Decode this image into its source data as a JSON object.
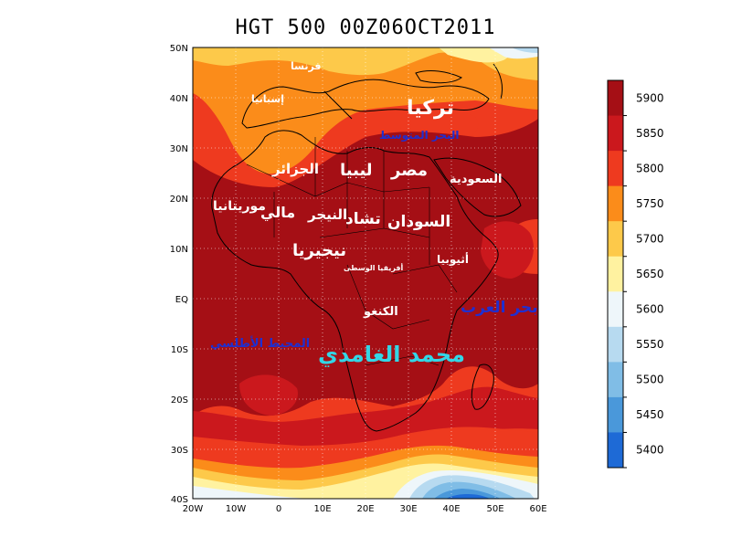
{
  "title": "HGT 500 00Z06OCT2011",
  "latitude_ticks": [
    "50N",
    "40N",
    "30N",
    "20N",
    "10N",
    "EQ",
    "10S",
    "20S",
    "30S",
    "40S"
  ],
  "longitude_ticks": [
    "20W",
    "10W",
    "0",
    "10E",
    "20E",
    "30E",
    "40E",
    "50E",
    "60E"
  ],
  "colorbar": {
    "labels": [
      "5900",
      "5850",
      "5800",
      "5750",
      "5700",
      "5650",
      "5600",
      "5550",
      "5500",
      "5450",
      "5400"
    ],
    "colors": [
      "#a50f15",
      "#cb181d",
      "#ee3a1f",
      "#fb8c1a",
      "#fdc94a",
      "#fff2a0",
      "#eef6fa",
      "#b7daf0",
      "#80bde6",
      "#4a98da",
      "#1e6ad6"
    ]
  },
  "map_labels": {
    "france": "فرنسا",
    "spain": "إسبانيا",
    "turkey": "تركيا",
    "mediterranean": "البحر المتوسط",
    "algeria": "الجزائر",
    "libya": "ليبيا",
    "egypt": "مصر",
    "saudi": "السعودية",
    "mauritania": "موريتانيا",
    "mali": "مالي",
    "niger": "النيجر",
    "chad": "تشاد",
    "sudan": "السودان",
    "nigeria": "نيجيريا",
    "ethiopia": "أثيوبيا",
    "car": "أفريقيا الوسطى",
    "congo": "الكنغو",
    "arabian_sea": "بحر العرب",
    "atlantic": "المحيط الأطلسي",
    "author": "محمد الغامدي"
  }
}
